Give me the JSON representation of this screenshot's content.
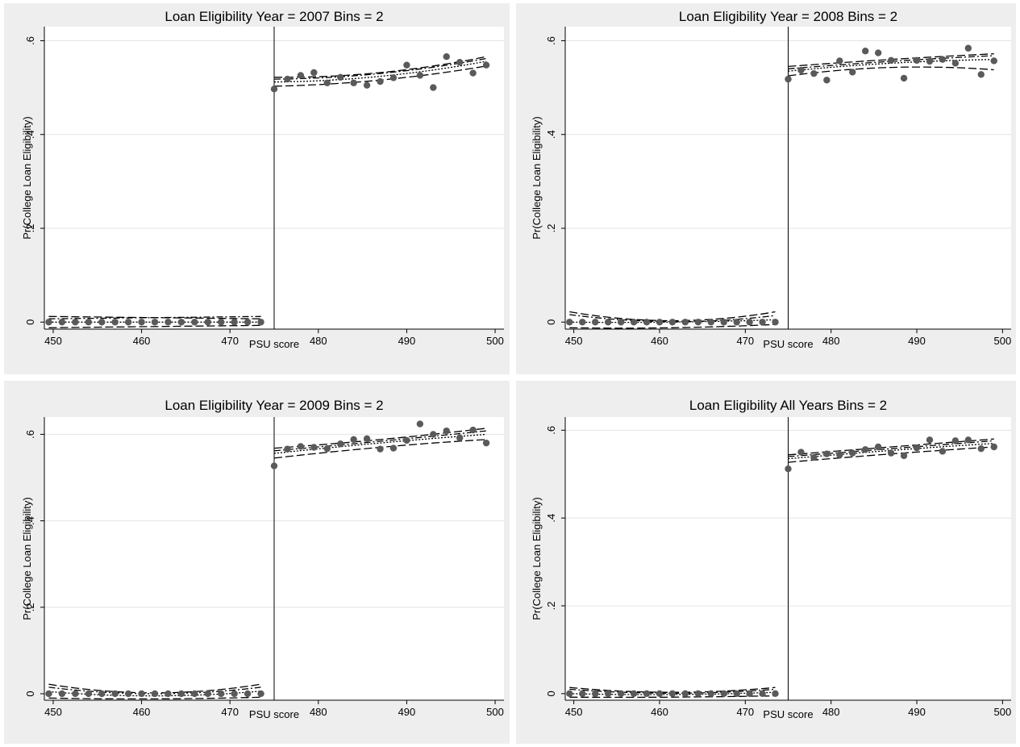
{
  "chart_data": [
    {
      "type": "scatter",
      "title": "Loan Eligibility Year = 2007 Bins = 2",
      "xlabel": "PSU score",
      "ylabel": "Pr(College Loan Eligibility)",
      "xlim": [
        449,
        501
      ],
      "ylim": [
        -0.015,
        0.63
      ],
      "xticks": [
        450,
        460,
        470,
        480,
        490,
        500
      ],
      "yticks": [
        0,
        0.2,
        0.4,
        0.6
      ],
      "ytick_labels": [
        "0",
        ".2",
        ".4",
        ".6"
      ],
      "cutoff": 475,
      "grid": true,
      "legend": "none",
      "x": [
        449.5,
        451,
        452.5,
        454,
        455.5,
        457,
        458.5,
        460,
        461.5,
        463,
        464.5,
        466,
        467.5,
        469,
        470.5,
        472,
        473.5,
        475,
        476.5,
        478,
        479.5,
        481,
        482.5,
        484,
        485.5,
        487,
        488.5,
        490,
        491.5,
        493,
        494.5,
        496,
        497.5,
        499
      ],
      "y": [
        0,
        0,
        0,
        0,
        0,
        0,
        0,
        0,
        0,
        0,
        0,
        0,
        0,
        0,
        0,
        0,
        0,
        0.497,
        0.518,
        0.526,
        0.532,
        0.51,
        0.522,
        0.51,
        0.505,
        0.513,
        0.521,
        0.548,
        0.526,
        0.5,
        0.566,
        0.554,
        0.531,
        0.548
      ],
      "fit_left": {
        "x": [
          449.5,
          473.5
        ],
        "fit": [
          0,
          0
        ],
        "upper": [
          0.012,
          0.007
        ],
        "lower": [
          -0.012,
          -0.007
        ],
        "alt": [
          0.007,
          0.012
        ]
      },
      "fit_right": {
        "x": [
          475,
          487,
          499
        ],
        "fit": [
          0.512,
          0.524,
          0.556
        ],
        "upper": [
          0.522,
          0.532,
          0.566
        ],
        "lower": [
          0.503,
          0.516,
          0.546
        ],
        "alt": [
          0.518,
          0.53,
          0.562
        ]
      }
    },
    {
      "type": "scatter",
      "title": "Loan Eligibility Year = 2008 Bins = 2",
      "xlabel": "PSU score",
      "ylabel": "Pr(College Loan Eligibility)",
      "xlim": [
        449,
        501
      ],
      "ylim": [
        -0.015,
        0.63
      ],
      "xticks": [
        450,
        460,
        470,
        480,
        490,
        500
      ],
      "yticks": [
        0,
        0.2,
        0.4,
        0.6
      ],
      "ytick_labels": [
        "0",
        ".2",
        ".4",
        ".6"
      ],
      "cutoff": 475,
      "grid": true,
      "legend": "none",
      "x": [
        449.5,
        451,
        452.5,
        454,
        455.5,
        457,
        458.5,
        460,
        461.5,
        463,
        464.5,
        466,
        467.5,
        469,
        470.5,
        472,
        473.5,
        475,
        476.5,
        478,
        479.5,
        481,
        482.5,
        484,
        485.5,
        487,
        488.5,
        490,
        491.5,
        493,
        494.5,
        496,
        497.5,
        499
      ],
      "y": [
        0,
        0,
        0,
        0,
        0,
        0,
        0,
        0,
        0,
        0,
        0,
        0,
        0,
        0,
        0,
        0,
        0,
        0.518,
        0.537,
        0.53,
        0.516,
        0.557,
        0.533,
        0.578,
        0.574,
        0.558,
        0.52,
        0.558,
        0.556,
        0.56,
        0.552,
        0.584,
        0.528,
        0.557
      ],
      "fit_left": {
        "x": [
          449.5,
          461.5,
          473.5
        ],
        "fit": [
          0,
          0,
          0.005
        ],
        "upper": [
          0.022,
          0.003,
          0.022
        ],
        "lower": [
          -0.012,
          -0.012,
          -0.005
        ],
        "alt": [
          0.016,
          0.001,
          0.014
        ]
      },
      "fit_right": {
        "x": [
          475,
          487,
          499
        ],
        "fit": [
          0.535,
          0.552,
          0.56
        ],
        "upper": [
          0.545,
          0.56,
          0.572
        ],
        "lower": [
          0.525,
          0.543,
          0.538
        ],
        "alt": [
          0.54,
          0.556,
          0.568
        ]
      }
    },
    {
      "type": "scatter",
      "title": "Loan Eligibility Year = 2009 Bins = 2",
      "xlabel": "PSU score",
      "ylabel": "Pr(College Loan Eligibility)",
      "xlim": [
        449,
        501
      ],
      "ylim": [
        -0.015,
        0.64
      ],
      "xticks": [
        450,
        460,
        470,
        480,
        490,
        500
      ],
      "yticks": [
        0,
        0.2,
        0.4,
        0.6
      ],
      "ytick_labels": [
        "0",
        ".2",
        ".4",
        ".6"
      ],
      "cutoff": 475,
      "grid": true,
      "legend": "none",
      "x": [
        449.5,
        451,
        452.5,
        454,
        455.5,
        457,
        458.5,
        460,
        461.5,
        463,
        464.5,
        466,
        467.5,
        469,
        470.5,
        472,
        473.5,
        475,
        476.5,
        478,
        479.5,
        481,
        482.5,
        484,
        485.5,
        487,
        488.5,
        490,
        491.5,
        493,
        494.5,
        496,
        497.5,
        499
      ],
      "y": [
        0,
        0,
        0,
        0,
        0,
        0,
        0,
        0,
        0,
        0,
        0,
        0,
        0,
        0,
        0,
        0,
        0,
        0.527,
        0.566,
        0.572,
        0.57,
        0.567,
        0.578,
        0.588,
        0.59,
        0.566,
        0.568,
        0.586,
        0.624,
        0.6,
        0.608,
        0.592,
        0.61,
        0.58
      ],
      "fit_left": {
        "x": [
          449.5,
          461.5,
          473.5
        ],
        "fit": [
          0.005,
          -0.005,
          0.006
        ],
        "upper": [
          0.022,
          0.002,
          0.022
        ],
        "lower": [
          -0.01,
          -0.012,
          -0.008
        ],
        "alt": [
          0.015,
          0.0,
          0.015
        ]
      },
      "fit_right": {
        "x": [
          475,
          487,
          499
        ],
        "fit": [
          0.556,
          0.58,
          0.6
        ],
        "upper": [
          0.568,
          0.588,
          0.614
        ],
        "lower": [
          0.545,
          0.57,
          0.588
        ],
        "alt": [
          0.562,
          0.584,
          0.608
        ]
      }
    },
    {
      "type": "scatter",
      "title": "Loan Eligibility All Years Bins = 2",
      "xlabel": "PSU score",
      "ylabel": "Pr(College Loan Eligibility)",
      "xlim": [
        449,
        501
      ],
      "ylim": [
        -0.015,
        0.63
      ],
      "xticks": [
        450,
        460,
        470,
        480,
        490,
        500
      ],
      "yticks": [
        0,
        0.2,
        0.4,
        0.6
      ],
      "ytick_labels": [
        "0",
        ".2",
        ".4",
        ".6"
      ],
      "cutoff": 475,
      "grid": true,
      "legend": "none",
      "x": [
        449.5,
        451,
        452.5,
        454,
        455.5,
        457,
        458.5,
        460,
        461.5,
        463,
        464.5,
        466,
        467.5,
        469,
        470.5,
        472,
        473.5,
        475,
        476.5,
        478,
        479.5,
        481,
        482.5,
        484,
        485.5,
        487,
        488.5,
        490,
        491.5,
        493,
        494.5,
        496,
        497.5,
        499
      ],
      "y": [
        0,
        0,
        0,
        0,
        0,
        0,
        0,
        0,
        0,
        0,
        0,
        0,
        0,
        0,
        0,
        0,
        0,
        0.512,
        0.55,
        0.538,
        0.546,
        0.544,
        0.548,
        0.556,
        0.562,
        0.548,
        0.542,
        0.56,
        0.578,
        0.552,
        0.576,
        0.578,
        0.558,
        0.562
      ],
      "fit_left": {
        "x": [
          449.5,
          461.5,
          473.5
        ],
        "fit": [
          0,
          -0.002,
          0.003
        ],
        "upper": [
          0.014,
          0.003,
          0.014
        ],
        "lower": [
          -0.008,
          -0.008,
          -0.005
        ],
        "alt": [
          0.01,
          0.001,
          0.01
        ]
      },
      "fit_right": {
        "x": [
          475,
          487,
          499
        ],
        "fit": [
          0.535,
          0.554,
          0.57
        ],
        "upper": [
          0.544,
          0.562,
          0.58
        ],
        "lower": [
          0.527,
          0.546,
          0.562
        ],
        "alt": [
          0.54,
          0.558,
          0.576
        ]
      }
    }
  ]
}
